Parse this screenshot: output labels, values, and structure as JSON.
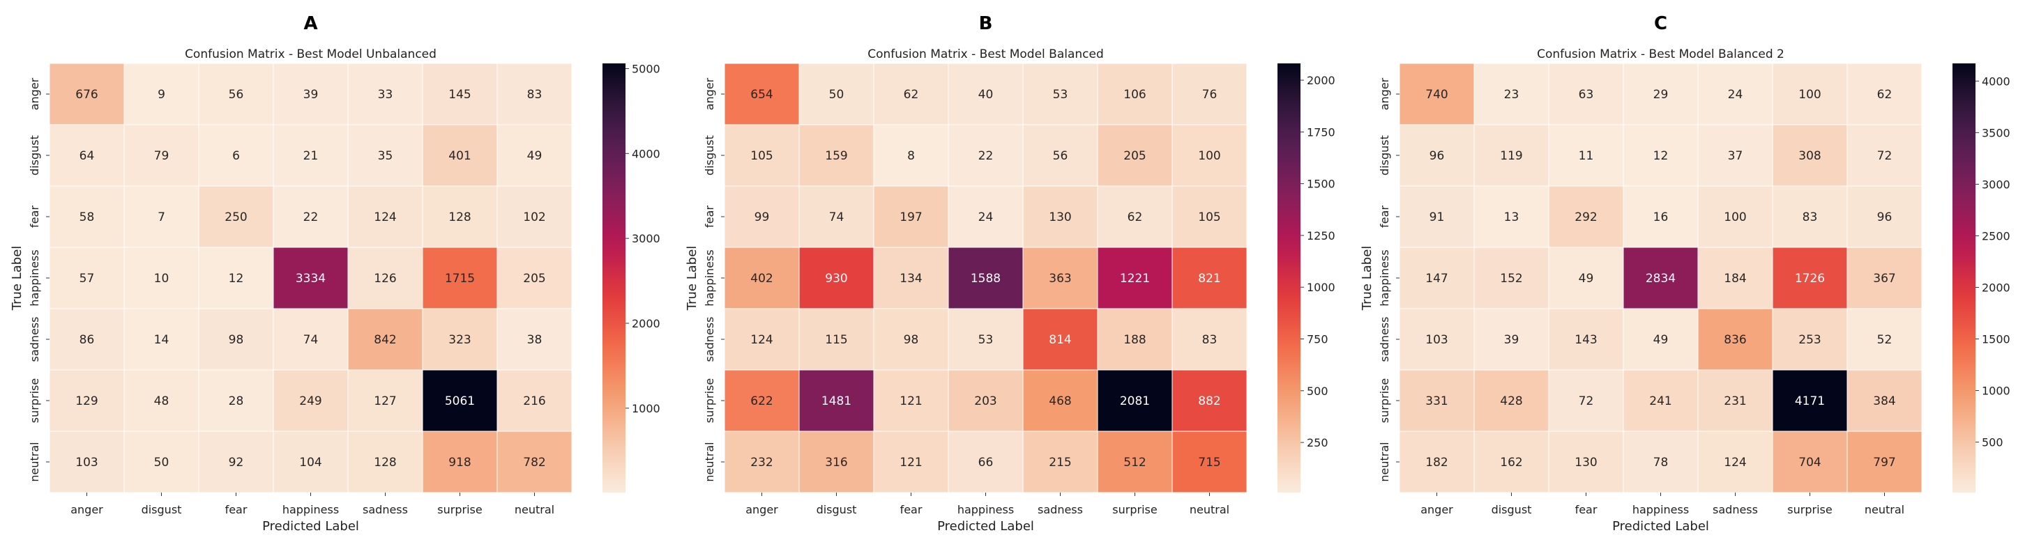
{
  "chart_data": [
    {
      "type": "heatmap",
      "panel_label": "A",
      "title": "Confusion Matrix - Best Model Unbalanced",
      "xlabel": "Predicted Label",
      "ylabel": "True Label",
      "x_categories": [
        "anger",
        "disgust",
        "fear",
        "happiness",
        "sadness",
        "surprise",
        "neutral"
      ],
      "y_categories": [
        "anger",
        "disgust",
        "fear",
        "happiness",
        "sadness",
        "surprise",
        "neutral"
      ],
      "values": [
        [
          676,
          9,
          56,
          39,
          33,
          145,
          83
        ],
        [
          64,
          79,
          6,
          21,
          35,
          401,
          49
        ],
        [
          58,
          7,
          250,
          22,
          124,
          128,
          102
        ],
        [
          57,
          10,
          12,
          3334,
          126,
          1715,
          205
        ],
        [
          86,
          14,
          98,
          74,
          842,
          323,
          38
        ],
        [
          129,
          48,
          28,
          249,
          127,
          5061,
          216
        ],
        [
          103,
          50,
          92,
          104,
          128,
          918,
          782
        ]
      ],
      "colorbar": {
        "min": 6,
        "max": 5061,
        "ticks": [
          1000,
          2000,
          3000,
          4000,
          5000
        ]
      },
      "colormap": "rocket_r"
    },
    {
      "type": "heatmap",
      "panel_label": "B",
      "title": "Confusion Matrix - Best Model Balanced",
      "xlabel": "Predicted Label",
      "ylabel": "True Label",
      "x_categories": [
        "anger",
        "disgust",
        "fear",
        "happiness",
        "sadness",
        "surprise",
        "neutral"
      ],
      "y_categories": [
        "anger",
        "disgust",
        "fear",
        "happiness",
        "sadness",
        "surprise",
        "neutral"
      ],
      "values": [
        [
          654,
          50,
          62,
          40,
          53,
          106,
          76
        ],
        [
          105,
          159,
          8,
          22,
          56,
          205,
          100
        ],
        [
          99,
          74,
          197,
          24,
          130,
          62,
          105
        ],
        [
          402,
          930,
          134,
          1588,
          363,
          1221,
          821
        ],
        [
          124,
          115,
          98,
          53,
          814,
          188,
          83
        ],
        [
          622,
          1481,
          121,
          203,
          468,
          2081,
          882
        ],
        [
          232,
          316,
          121,
          66,
          215,
          512,
          715
        ]
      ],
      "colorbar": {
        "min": 8,
        "max": 2081,
        "ticks": [
          250,
          500,
          750,
          1000,
          1250,
          1500,
          1750,
          2000
        ]
      },
      "colormap": "rocket_r"
    },
    {
      "type": "heatmap",
      "panel_label": "C",
      "title": "Confusion Matrix - Best Model Balanced 2",
      "xlabel": "Predicted Label",
      "ylabel": "True Label",
      "x_categories": [
        "anger",
        "disgust",
        "fear",
        "happiness",
        "sadness",
        "surprise",
        "neutral"
      ],
      "y_categories": [
        "anger",
        "disgust",
        "fear",
        "happiness",
        "sadness",
        "surprise",
        "neutral"
      ],
      "values": [
        [
          740,
          23,
          63,
          29,
          24,
          100,
          62
        ],
        [
          96,
          119,
          11,
          12,
          37,
          308,
          72
        ],
        [
          91,
          13,
          292,
          16,
          100,
          83,
          96
        ],
        [
          147,
          152,
          49,
          2834,
          184,
          1726,
          367
        ],
        [
          103,
          39,
          143,
          49,
          836,
          253,
          52
        ],
        [
          331,
          428,
          72,
          241,
          231,
          4171,
          384
        ],
        [
          182,
          162,
          130,
          78,
          124,
          704,
          797
        ]
      ],
      "colorbar": {
        "min": 11,
        "max": 4171,
        "ticks": [
          500,
          1000,
          1500,
          2000,
          2500,
          3000,
          3500,
          4000
        ]
      },
      "colormap": "rocket_r"
    }
  ]
}
